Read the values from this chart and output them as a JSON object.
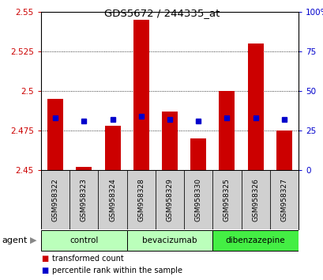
{
  "title": "GDS5672 / 244335_at",
  "samples": [
    "GSM958322",
    "GSM958323",
    "GSM958324",
    "GSM958328",
    "GSM958329",
    "GSM958330",
    "GSM958325",
    "GSM958326",
    "GSM958327"
  ],
  "red_values": [
    2.495,
    2.452,
    2.478,
    2.545,
    2.487,
    2.47,
    2.5,
    2.53,
    2.475
  ],
  "blue_values": [
    2.483,
    2.481,
    2.482,
    2.484,
    2.482,
    2.481,
    2.483,
    2.483,
    2.482
  ],
  "bar_bottom": 2.45,
  "ylim_left": [
    2.45,
    2.55
  ],
  "ylim_right": [
    0,
    100
  ],
  "yticks_left": [
    2.45,
    2.475,
    2.5,
    2.525,
    2.55
  ],
  "yticks_right": [
    0,
    25,
    50,
    75,
    100
  ],
  "ytick_labels_left": [
    "2.45",
    "2.475",
    "2.5",
    "2.525",
    "2.55"
  ],
  "ytick_labels_right": [
    "0",
    "25",
    "50",
    "75",
    "100%"
  ],
  "grid_yticks": [
    2.475,
    2.5,
    2.525
  ],
  "groups": [
    {
      "label": "control",
      "start": 0,
      "end": 2,
      "color": "#bbffbb"
    },
    {
      "label": "bevacizumab",
      "start": 3,
      "end": 5,
      "color": "#bbffbb"
    },
    {
      "label": "dibenzazepine",
      "start": 6,
      "end": 8,
      "color": "#44ee44"
    }
  ],
  "agent_label": "agent",
  "legend_red_label": "transformed count",
  "legend_blue_label": "percentile rank within the sample",
  "red_color": "#cc0000",
  "blue_color": "#0000cc",
  "bar_width": 0.55,
  "bg_color": "#ffffff",
  "sample_box_color": "#d0d0d0",
  "tick_color_left": "#cc0000",
  "tick_color_right": "#0000cc"
}
